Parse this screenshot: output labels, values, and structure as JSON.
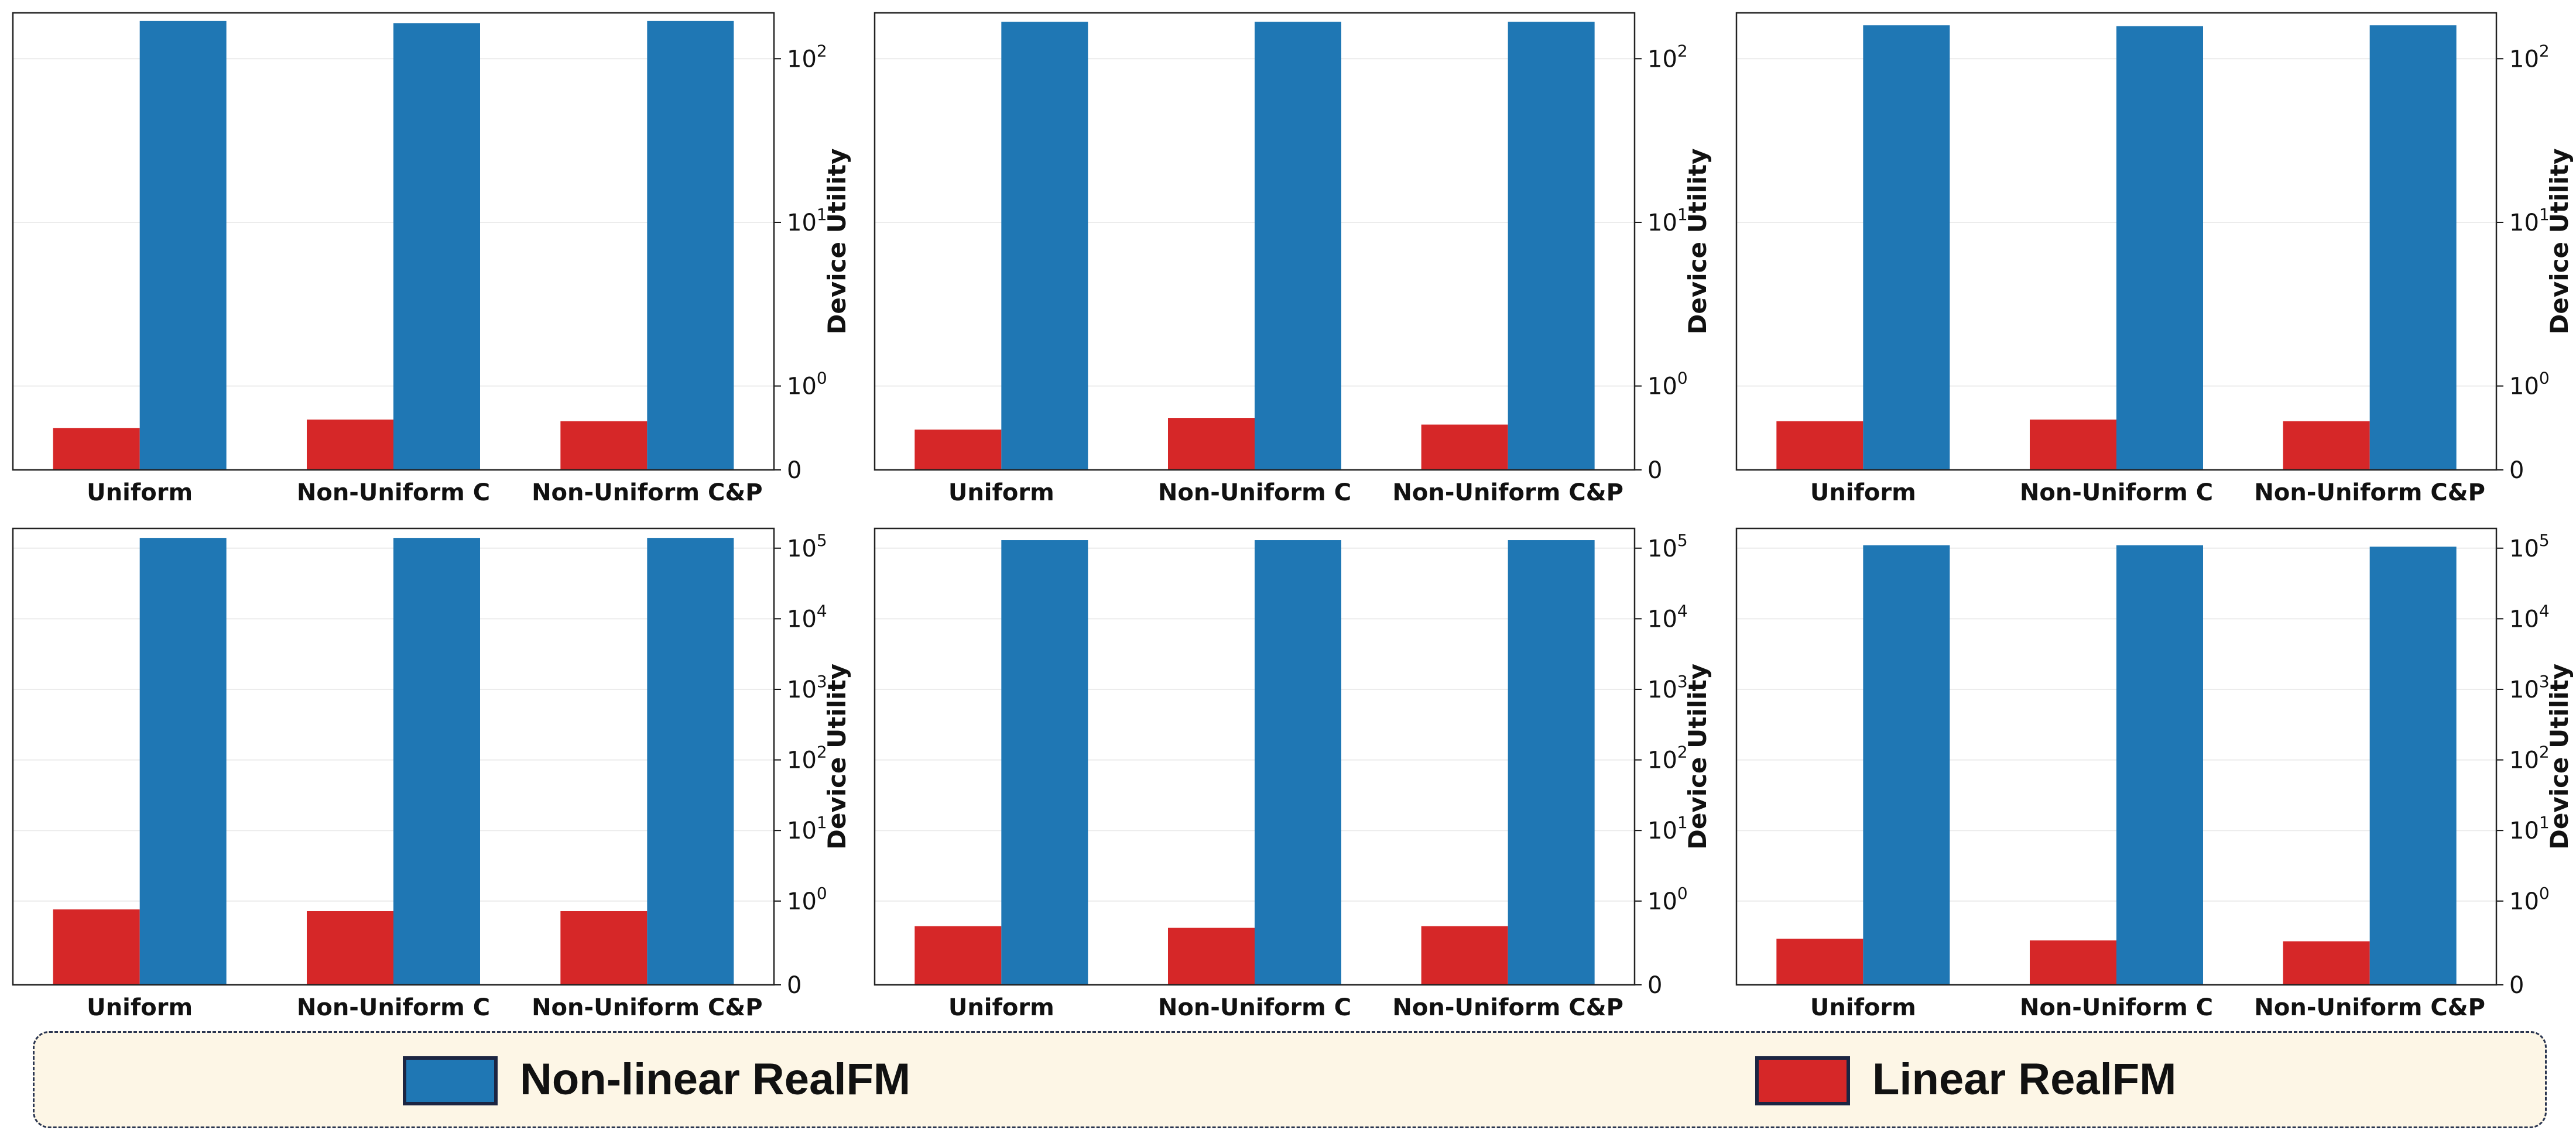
{
  "colors": {
    "nonlinear": "#1f77b4",
    "linear": "#d62728",
    "legend_bg": "#fdf6e6",
    "legend_border": "#2a3550"
  },
  "legend": {
    "items": [
      {
        "label": "Non-linear RealFM",
        "color": "#1f77b4"
      },
      {
        "label": "Linear RealFM",
        "color": "#d62728"
      }
    ]
  },
  "chart_data": [
    {
      "type": "bar",
      "title": "",
      "xlabel": "",
      "ylabel": "Device Utility",
      "yscale": "symlog",
      "ylim": [
        0,
        190
      ],
      "y_ticks": [
        "0",
        "10^0",
        "10^1",
        "10^2"
      ],
      "grid": true,
      "categories": [
        "Uniform",
        "Non-Uniform C",
        "Non-Uniform C&P"
      ],
      "series": [
        {
          "key": "linear",
          "values": [
            0.5,
            0.6,
            0.58
          ]
        },
        {
          "key": "nonlinear",
          "values": [
            170,
            165,
            170
          ]
        }
      ]
    },
    {
      "type": "bar",
      "title": "",
      "xlabel": "",
      "ylabel": "Device Utility",
      "yscale": "symlog",
      "ylim": [
        0,
        190
      ],
      "y_ticks": [
        "0",
        "10^0",
        "10^1",
        "10^2"
      ],
      "grid": true,
      "categories": [
        "Uniform",
        "Non-Uniform C",
        "Non-Uniform C&P"
      ],
      "series": [
        {
          "key": "linear",
          "values": [
            0.48,
            0.62,
            0.54
          ]
        },
        {
          "key": "nonlinear",
          "values": [
            168,
            168,
            168
          ]
        }
      ]
    },
    {
      "type": "bar",
      "title": "",
      "xlabel": "",
      "ylabel": "Device Utility",
      "yscale": "symlog",
      "ylim": [
        0,
        190
      ],
      "y_ticks": [
        "0",
        "10^0",
        "10^1",
        "10^2"
      ],
      "grid": true,
      "categories": [
        "Uniform",
        "Non-Uniform C",
        "Non-Uniform C&P"
      ],
      "series": [
        {
          "key": "linear",
          "values": [
            0.58,
            0.6,
            0.58
          ]
        },
        {
          "key": "nonlinear",
          "values": [
            160,
            158,
            160
          ]
        }
      ]
    },
    {
      "type": "bar",
      "title": "",
      "xlabel": "",
      "ylabel": "Device Utility",
      "yscale": "symlog",
      "ylim": [
        0,
        190000
      ],
      "y_ticks": [
        "0",
        "10^0",
        "10^1",
        "10^2",
        "10^3",
        "10^4",
        "10^5"
      ],
      "grid": true,
      "categories": [
        "Uniform",
        "Non-Uniform C",
        "Non-Uniform C&P"
      ],
      "series": [
        {
          "key": "linear",
          "values": [
            0.9,
            0.88,
            0.88
          ]
        },
        {
          "key": "nonlinear",
          "values": [
            140000,
            140000,
            140000
          ]
        }
      ]
    },
    {
      "type": "bar",
      "title": "",
      "xlabel": "",
      "ylabel": "Device Utility",
      "yscale": "symlog",
      "ylim": [
        0,
        190000
      ],
      "y_ticks": [
        "0",
        "10^0",
        "10^1",
        "10^2",
        "10^3",
        "10^4",
        "10^5"
      ],
      "grid": true,
      "categories": [
        "Uniform",
        "Non-Uniform C",
        "Non-Uniform C&P"
      ],
      "series": [
        {
          "key": "linear",
          "values": [
            0.7,
            0.68,
            0.7
          ]
        },
        {
          "key": "nonlinear",
          "values": [
            130000,
            130000,
            130000
          ]
        }
      ]
    },
    {
      "type": "bar",
      "title": "",
      "xlabel": "",
      "ylabel": "Device Utility",
      "yscale": "symlog",
      "ylim": [
        0,
        190000
      ],
      "y_ticks": [
        "0",
        "10^0",
        "10^1",
        "10^2",
        "10^3",
        "10^4",
        "10^5"
      ],
      "grid": true,
      "categories": [
        "Uniform",
        "Non-Uniform C",
        "Non-Uniform C&P"
      ],
      "series": [
        {
          "key": "linear",
          "values": [
            0.55,
            0.53,
            0.52
          ]
        },
        {
          "key": "nonlinear",
          "values": [
            110000,
            110000,
            105000
          ]
        }
      ]
    }
  ]
}
